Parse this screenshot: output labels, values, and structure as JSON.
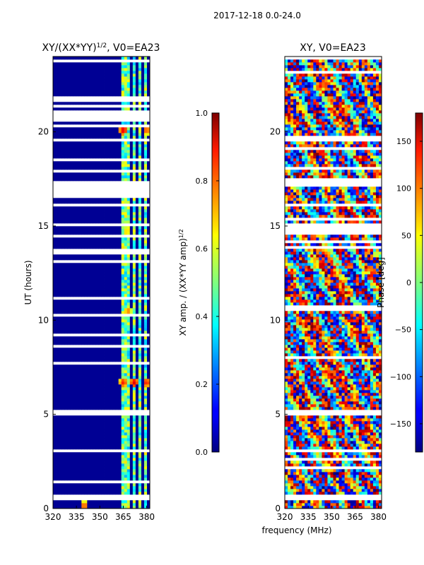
{
  "chart_data": [
    {
      "type": "heatmap",
      "title": "XY/(XX*YY)",
      "title_exponent": "1/2",
      "title_suffix": ", V0=EA23",
      "xlabel": "",
      "ylabel": "UT (hours)",
      "xlim": [
        320,
        382
      ],
      "ylim": [
        0,
        24
      ],
      "x_ticks": [
        320,
        335,
        350,
        365,
        380
      ],
      "y_ticks": [
        0,
        5,
        10,
        15,
        20
      ],
      "colorbar": {
        "label": "XY amp. / (XX*YY amp)",
        "label_exponent": "1/2",
        "range": [
          0.0,
          1.0
        ],
        "ticks": [
          "0.0",
          "0.2",
          "0.4",
          "0.6",
          "0.8",
          "1.0"
        ],
        "colormap": "jet"
      },
      "background_value": 0.02,
      "rfi_bands_mhz": [
        [
          363,
          365.5
        ],
        [
          366.5,
          369
        ],
        [
          371,
          373.5
        ],
        [
          374.5,
          377
        ],
        [
          378.5,
          380.5
        ]
      ],
      "rfi_band_value": 0.5,
      "blank_hours": [
        [
          16.5,
          17.4
        ],
        [
          0.5,
          0.7
        ],
        [
          3.0,
          3.2
        ],
        [
          5.0,
          5.2
        ],
        [
          13.5,
          13.7
        ],
        [
          15.0,
          15.2
        ],
        [
          17.8,
          18.0
        ],
        [
          19.0,
          19.1
        ]
      ],
      "hot_spots": [
        {
          "x": 365,
          "y": 20.1,
          "value": 0.9
        },
        {
          "x": 380,
          "y": 20.1,
          "value": 0.8
        },
        {
          "x": 365,
          "y": 6.7,
          "value": 0.85
        },
        {
          "x": 372,
          "y": 6.7,
          "value": 0.9
        },
        {
          "x": 380,
          "y": 6.7,
          "value": 0.85
        },
        {
          "x": 368,
          "y": 10.5,
          "value": 0.75
        },
        {
          "x": 340,
          "y": 0.15,
          "value": 0.8
        }
      ]
    },
    {
      "type": "heatmap",
      "title": "XY, V0=EA23",
      "xlabel": "frequency (MHz)",
      "ylabel": "",
      "xlim": [
        320,
        382
      ],
      "ylim": [
        0,
        24
      ],
      "x_ticks": [
        320,
        335,
        350,
        365,
        380
      ],
      "y_ticks": [
        0,
        5,
        10,
        15,
        20
      ],
      "colorbar": {
        "label": "Phase [deg]",
        "range": [
          -180,
          180
        ],
        "ticks": [
          "−150",
          "−100",
          "−50",
          "0",
          "50",
          "100",
          "150"
        ],
        "colormap": "jet"
      },
      "blank_hours": [
        [
          17.2,
          17.6
        ],
        [
          14.5,
          15.0
        ],
        [
          8.0,
          8.15
        ],
        [
          5.0,
          5.2
        ],
        [
          3.0,
          3.2
        ],
        [
          0.5,
          0.7
        ],
        [
          19.0,
          19.2
        ]
      ]
    }
  ],
  "figure_title": "2017-12-18 0.0-24.0"
}
